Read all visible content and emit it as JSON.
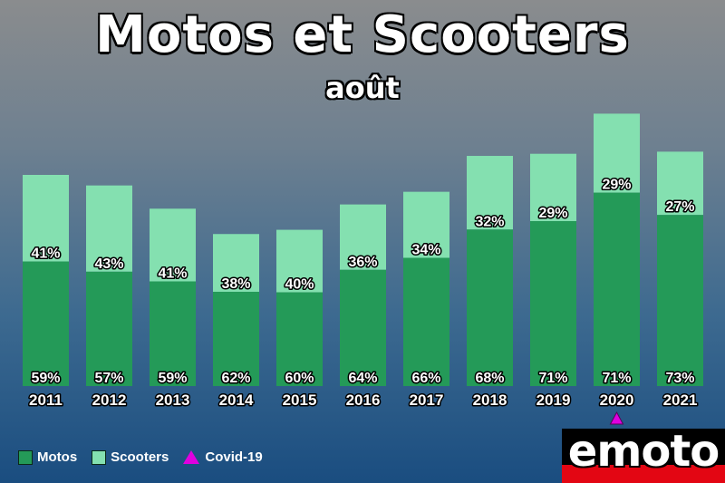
{
  "header": {
    "title": "Motos et Scooters",
    "subtitle": "août"
  },
  "colors": {
    "motos": "#249a58",
    "scooters": "#84e0b0",
    "covid": "#e000e0",
    "label_text": "#ffffff"
  },
  "legend": {
    "motos": "Motos",
    "scooters": "Scooters",
    "covid": "Covid-19"
  },
  "logo": {
    "text": "emoto"
  },
  "chart_data": {
    "type": "bar",
    "stacked": true,
    "title": "Motos et Scooters",
    "subtitle": "août",
    "categories": [
      "2011",
      "2012",
      "2013",
      "2014",
      "2015",
      "2016",
      "2017",
      "2018",
      "2019",
      "2020",
      "2021"
    ],
    "series": [
      {
        "name": "Motos",
        "values": [
          59,
          57,
          59,
          62,
          60,
          64,
          66,
          68,
          71,
          71,
          73
        ],
        "labels": [
          "59%",
          "57%",
          "59%",
          "62%",
          "60%",
          "64%",
          "66%",
          "68%",
          "71%",
          "71%",
          "73%"
        ]
      },
      {
        "name": "Scooters",
        "values": [
          41,
          43,
          41,
          38,
          40,
          36,
          34,
          32,
          29,
          29,
          27
        ],
        "labels": [
          "41%",
          "43%",
          "41%",
          "38%",
          "40%",
          "36%",
          "34%",
          "32%",
          "29%",
          "29%",
          "27%"
        ]
      }
    ],
    "relative_totals": [
      1.0,
      0.95,
      0.84,
      0.72,
      0.74,
      0.86,
      0.92,
      1.09,
      1.1,
      1.29,
      1.11
    ],
    "annotations": [
      {
        "category": "2020",
        "marker": "triangle",
        "label": "Covid-19"
      }
    ],
    "legend_position": "bottom-left",
    "grid": false
  }
}
